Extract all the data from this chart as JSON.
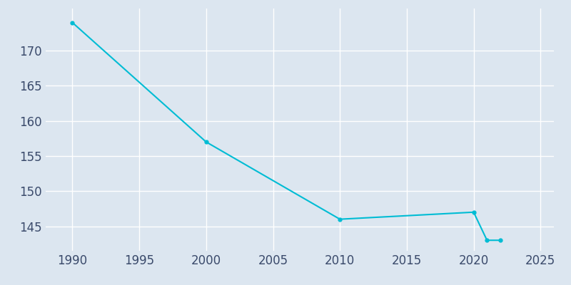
{
  "years": [
    1990,
    2000,
    2010,
    2020,
    2021,
    2022
  ],
  "population": [
    174,
    157,
    146,
    147,
    143,
    143
  ],
  "line_color": "#00bcd4",
  "marker_color": "#00bcd4",
  "bg_color": "#dce6f0",
  "grid_color": "#ffffff",
  "xlim": [
    1988,
    2026
  ],
  "ylim": [
    141.5,
    176
  ],
  "xticks": [
    1990,
    1995,
    2000,
    2005,
    2010,
    2015,
    2020,
    2025
  ],
  "yticks": [
    145,
    150,
    155,
    160,
    165,
    170
  ],
  "tick_color": "#3a4a6b",
  "tick_fontsize": 12
}
